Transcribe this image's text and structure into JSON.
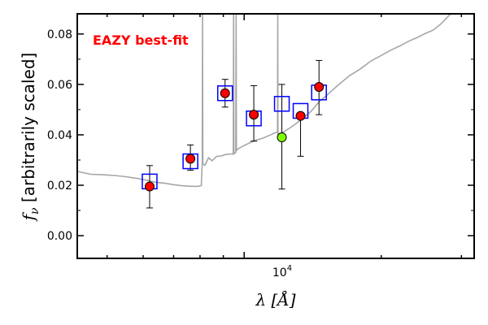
{
  "chart_data": {
    "type": "scatter",
    "annotation": "EAZY best-fit",
    "annotation_color": "#ff0000",
    "xlabel": "λ [Å]",
    "ylabel": "f_ν [arbitrarily scaled]",
    "x_scale": "log",
    "xlim": [
      4300,
      32000
    ],
    "ylim": [
      -0.009,
      0.088
    ],
    "x_major_tick_label": "10^4",
    "yticks": [
      "0.00",
      "0.02",
      "0.04",
      "0.06",
      "0.08"
    ],
    "grid": false,
    "colors": {
      "template": "#a6a6a6",
      "model_box": "#0000ff",
      "observed": "#ff0000",
      "flagged": "#7fff00",
      "errorbar": "#000000"
    },
    "model_fluxes": [
      {
        "wavelength": 6200,
        "flux": 0.0215
      },
      {
        "wavelength": 7620,
        "flux": 0.0295
      },
      {
        "wavelength": 9080,
        "flux": 0.0565
      },
      {
        "wavelength": 10500,
        "flux": 0.0465
      },
      {
        "wavelength": 12100,
        "flux": 0.0523
      },
      {
        "wavelength": 13300,
        "flux": 0.0495
      },
      {
        "wavelength": 14600,
        "flux": 0.0568
      }
    ],
    "observed_fluxes": [
      {
        "wavelength": 6200,
        "flux": 0.0195,
        "err_low": 0.0085,
        "err_high": 0.0083
      },
      {
        "wavelength": 7620,
        "flux": 0.0305,
        "err_low": 0.0045,
        "err_high": 0.0055
      },
      {
        "wavelength": 9080,
        "flux": 0.0565,
        "err_low": 0.0055,
        "err_high": 0.0055
      },
      {
        "wavelength": 10500,
        "flux": 0.048,
        "err_low": 0.0105,
        "err_high": 0.0115
      },
      {
        "wavelength": 13300,
        "flux": 0.0475,
        "err_low": 0.016,
        "err_high": 0.0
      },
      {
        "wavelength": 14600,
        "flux": 0.059,
        "err_low": 0.011,
        "err_high": 0.0105
      }
    ],
    "flagged_fluxes": [
      {
        "wavelength": 12100,
        "flux": 0.039,
        "err_low": 0.0205,
        "err_high": 0.021
      }
    ],
    "template_spectrum": [
      [
        4300,
        0.0255
      ],
      [
        4600,
        0.024
      ],
      [
        4900,
        0.0235
      ],
      [
        5200,
        0.023
      ],
      [
        5500,
        0.0225
      ],
      [
        5800,
        0.022
      ],
      [
        6100,
        0.0215
      ],
      [
        6400,
        0.021
      ],
      [
        6700,
        0.021
      ],
      [
        7000,
        0.0208
      ],
      [
        7300,
        0.0206
      ],
      [
        7600,
        0.0205
      ],
      [
        7900,
        0.0204
      ],
      [
        8050,
        0.0205
      ],
      [
        8090,
        0.028
      ],
      [
        8200,
        0.027
      ],
      [
        8350,
        0.03
      ],
      [
        8500,
        0.029
      ],
      [
        8700,
        0.031
      ],
      [
        8900,
        0.0315
      ],
      [
        9100,
        0.0325
      ],
      [
        9400,
        0.033
      ],
      [
        9700,
        0.034
      ],
      [
        10000,
        0.035
      ],
      [
        10300,
        0.036
      ],
      [
        10600,
        0.037
      ],
      [
        11000,
        0.038
      ],
      [
        11400,
        0.0395
      ],
      [
        11800,
        0.041
      ],
      [
        12200,
        0.042
      ],
      [
        12600,
        0.0435
      ],
      [
        13000,
        0.045
      ],
      [
        13500,
        0.047
      ],
      [
        14000,
        0.049
      ],
      [
        14600,
        0.0525
      ],
      [
        15200,
        0.055
      ],
      [
        16000,
        0.0585
      ],
      [
        17000,
        0.0625
      ],
      [
        18000,
        0.0655
      ],
      [
        19000,
        0.069
      ],
      [
        20000,
        0.0715
      ],
      [
        21000,
        0.074
      ],
      [
        22000,
        0.076
      ],
      [
        23000,
        0.078
      ],
      [
        24000,
        0.0795
      ],
      [
        25000,
        0.081
      ],
      [
        26000,
        0.082
      ],
      [
        27000,
        0.084
      ],
      [
        28500,
        0.088
      ]
    ],
    "emission_lines": [
      {
        "wavelength": 8100,
        "peak": 0.088
      },
      {
        "wavelength": 9480,
        "peak": 0.088
      },
      {
        "wavelength": 9600,
        "peak": 0.088
      },
      {
        "wavelength": 11850,
        "peak": 0.088
      }
    ]
  }
}
